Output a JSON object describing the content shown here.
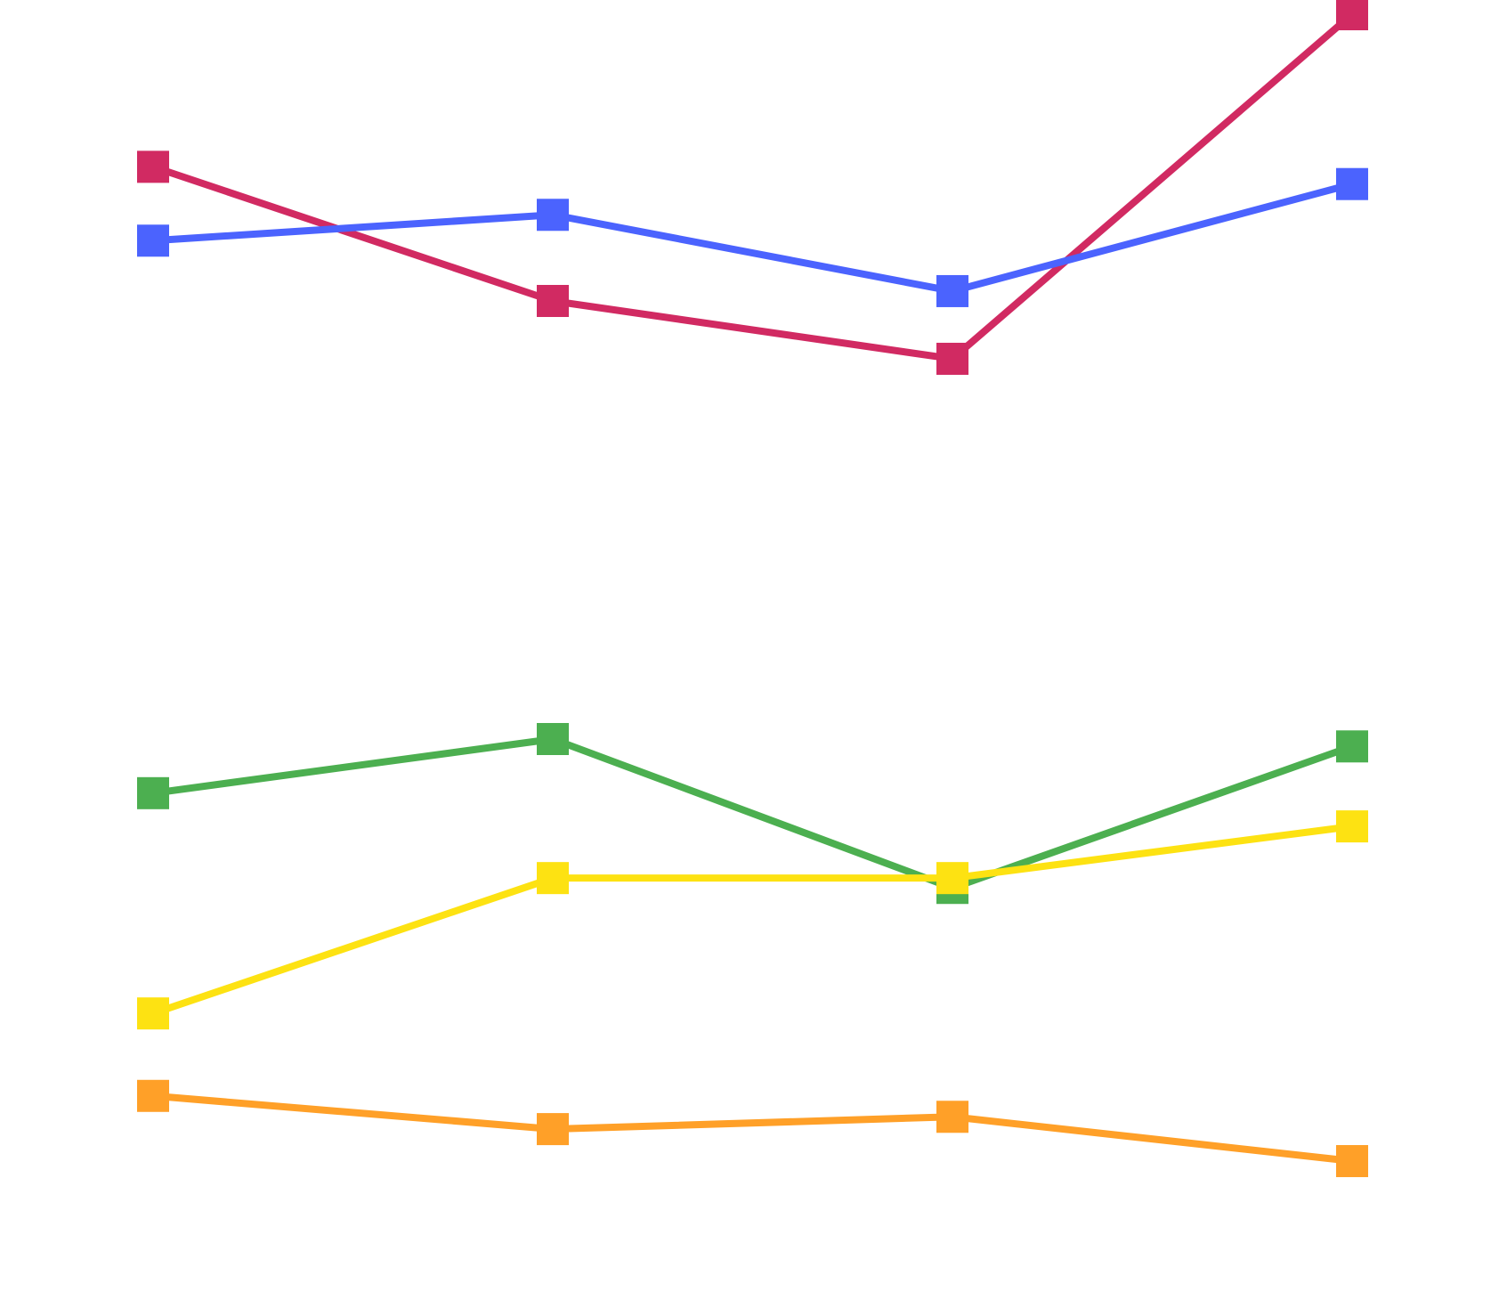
{
  "chart_data": {
    "type": "line",
    "title": "",
    "xlabel": "",
    "ylabel": "",
    "x": [
      0,
      1,
      2,
      3
    ],
    "ylim": [
      0,
      100
    ],
    "grid": false,
    "axes_visible": false,
    "legend": "none",
    "marker": "square",
    "series": [
      {
        "color": "#d12a62",
        "values": [
          87.6,
          76.7,
          72.0,
          100.0
        ]
      },
      {
        "color": "#4b63fe",
        "values": [
          81.6,
          83.7,
          77.5,
          86.2
        ]
      },
      {
        "color": "#4caf50",
        "values": [
          36.7,
          41.1,
          29.0,
          40.5
        ]
      },
      {
        "color": "#fde212",
        "values": [
          18.8,
          29.8,
          29.8,
          34.0
        ]
      },
      {
        "color": "#ffa028",
        "values": [
          12.1,
          9.4,
          10.4,
          6.8
        ]
      }
    ]
  }
}
